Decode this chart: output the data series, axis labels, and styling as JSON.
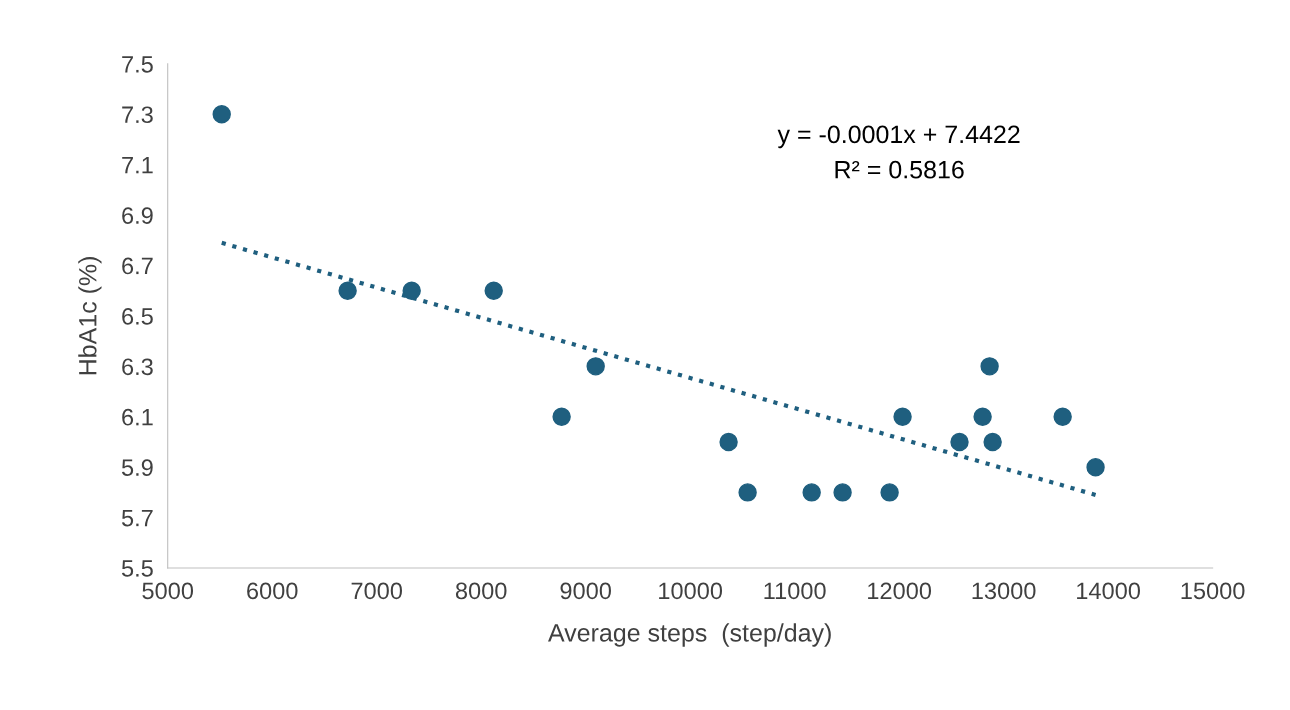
{
  "chart_data": {
    "type": "scatter",
    "xlabel": "Average steps  (step/day)",
    "ylabel": "HbA1c (%)",
    "series": [
      {
        "color": "#1f5f7f",
        "marker": "circle",
        "x": [
          5517,
          6722,
          7335,
          8120,
          8770,
          9096,
          10368,
          10550,
          11163,
          11459,
          11909,
          12033,
          12578,
          12799,
          12866,
          12895,
          13565,
          13880
        ],
        "values": [
          7.3,
          6.6,
          6.6,
          6.6,
          6.1,
          6.3,
          6.0,
          5.8,
          5.8,
          5.8,
          5.8,
          6.1,
          6.0,
          6.1,
          6.3,
          6.0,
          6.1,
          5.9
        ]
      },
      {
        "type": "line",
        "color": "#1f5f7f",
        "marker": "none",
        "line_style": "dotted",
        "x": [
          5517,
          13880
        ],
        "values": [
          6.79,
          5.79
        ]
      }
    ],
    "annotations": [
      "y = -0.0001x + 7.4422",
      "R² = 0.5816"
    ],
    "xlim": [
      5000,
      15000
    ],
    "xticks": [
      5000,
      6000,
      7000,
      8000,
      9000,
      10000,
      11000,
      12000,
      13000,
      14000,
      15000
    ],
    "ylim": [
      5.5,
      7.5
    ],
    "yticks": [
      5.5,
      5.7,
      5.9,
      6.1,
      6.3,
      6.5,
      6.7,
      6.9,
      7.1,
      7.3,
      7.5
    ],
    "grid": false,
    "legend": false
  }
}
